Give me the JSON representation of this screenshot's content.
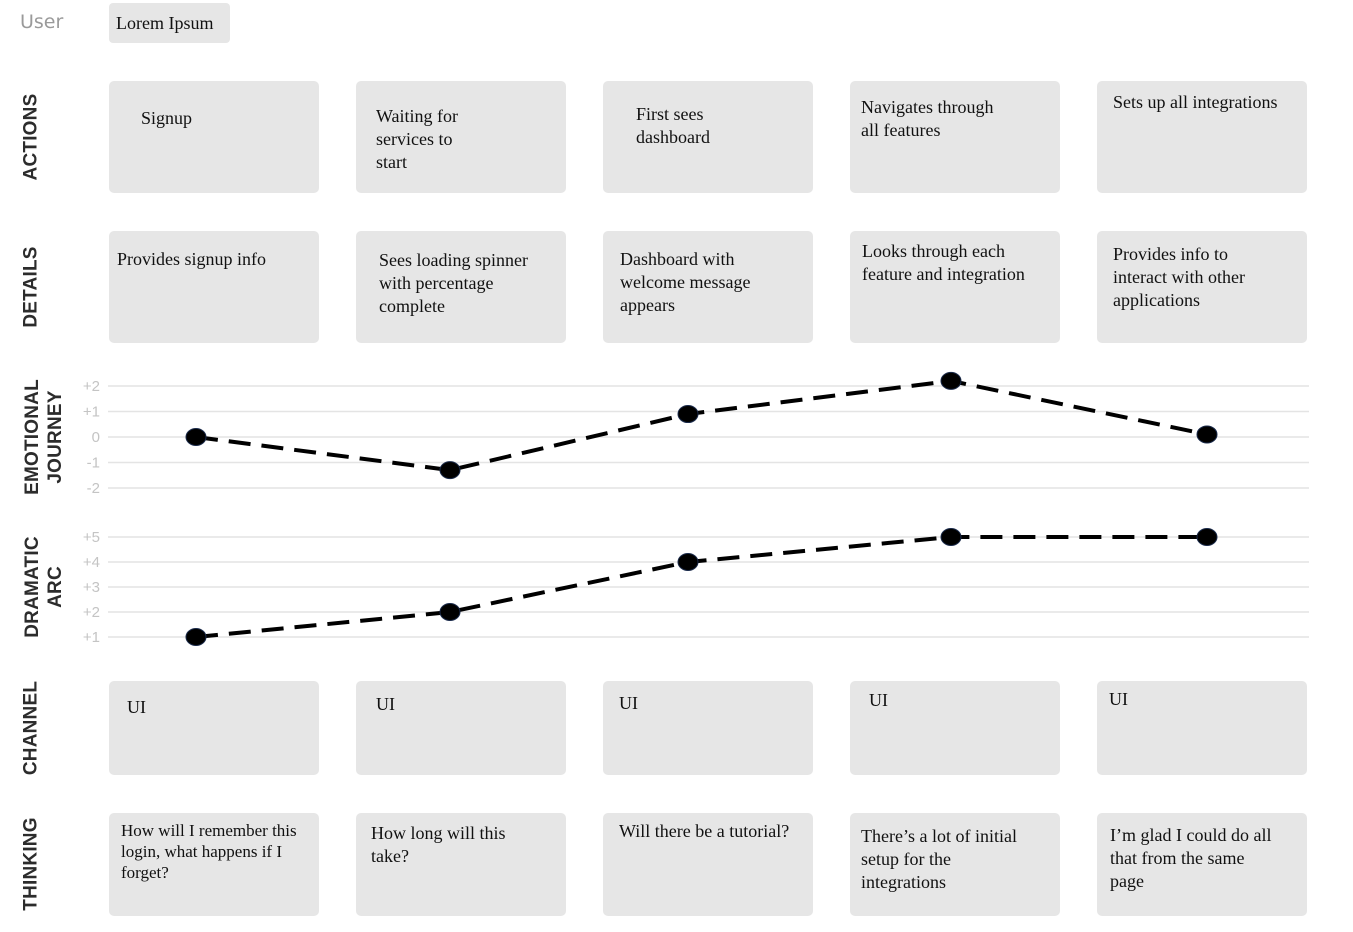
{
  "user": {
    "label": "User",
    "value": "Lorem Ipsum"
  },
  "row_labels": {
    "actions": "ACTIONS",
    "details": "DETAILS",
    "emotional": [
      "EMOTIONAL",
      "JOURNEY"
    ],
    "dramatic": [
      "DRAMATIC",
      "ARC"
    ],
    "channel": "CHANNEL",
    "thinking": "THINKING"
  },
  "actions": [
    "Signup",
    "Waiting for\nservices to\nstart",
    "First sees\ndashboard",
    "Navigates through\nall features",
    "Sets up all integrations"
  ],
  "details": [
    "Provides signup info",
    "Sees loading spinner\nwith percentage\ncomplete",
    "Dashboard with\nwelcome message\nappears",
    "Looks through each\nfeature and integration",
    "Provides info to\ninteract with other\napplications"
  ],
  "channel": [
    "UI",
    "UI",
    "UI",
    "UI",
    "UI"
  ],
  "thinking": [
    "How will I remember this\nlogin, what happens if I\nforget?",
    "How long will this\ntake?",
    "Will there be a tutorial?",
    "There’s a lot of initial\nsetup for the\nintegrations",
    "I’m glad I could do all\nthat from the same\npage"
  ],
  "chart_data": [
    {
      "type": "line",
      "name": "emotional-journey",
      "y_ticks": [
        "+2",
        "+1",
        "0",
        "-1",
        "-2"
      ],
      "ylim": [
        -2,
        2
      ],
      "x": [
        1,
        2,
        3,
        4,
        5
      ],
      "values": [
        0,
        -1.3,
        0.9,
        2.2,
        0.1
      ],
      "line_style": "dashed",
      "colors": {
        "line": "#000000",
        "point": "#000000",
        "grid": "#e4e4e4",
        "tick": "#c4c4c4"
      }
    },
    {
      "type": "line",
      "name": "dramatic-arc",
      "y_ticks": [
        "+5",
        "+4",
        "+3",
        "+2",
        "+1"
      ],
      "ylim": [
        1,
        5
      ],
      "x": [
        1,
        2,
        3,
        4,
        5
      ],
      "values": [
        1,
        2,
        4,
        5,
        5
      ],
      "line_style": "dashed",
      "colors": {
        "line": "#000000",
        "point": "#000000",
        "grid": "#e4e4e4",
        "tick": "#c4c4c4"
      }
    }
  ],
  "colors": {
    "card": "#e6e6e6",
    "label": "#2c2c2c",
    "user_label": "#9a9a9a"
  }
}
